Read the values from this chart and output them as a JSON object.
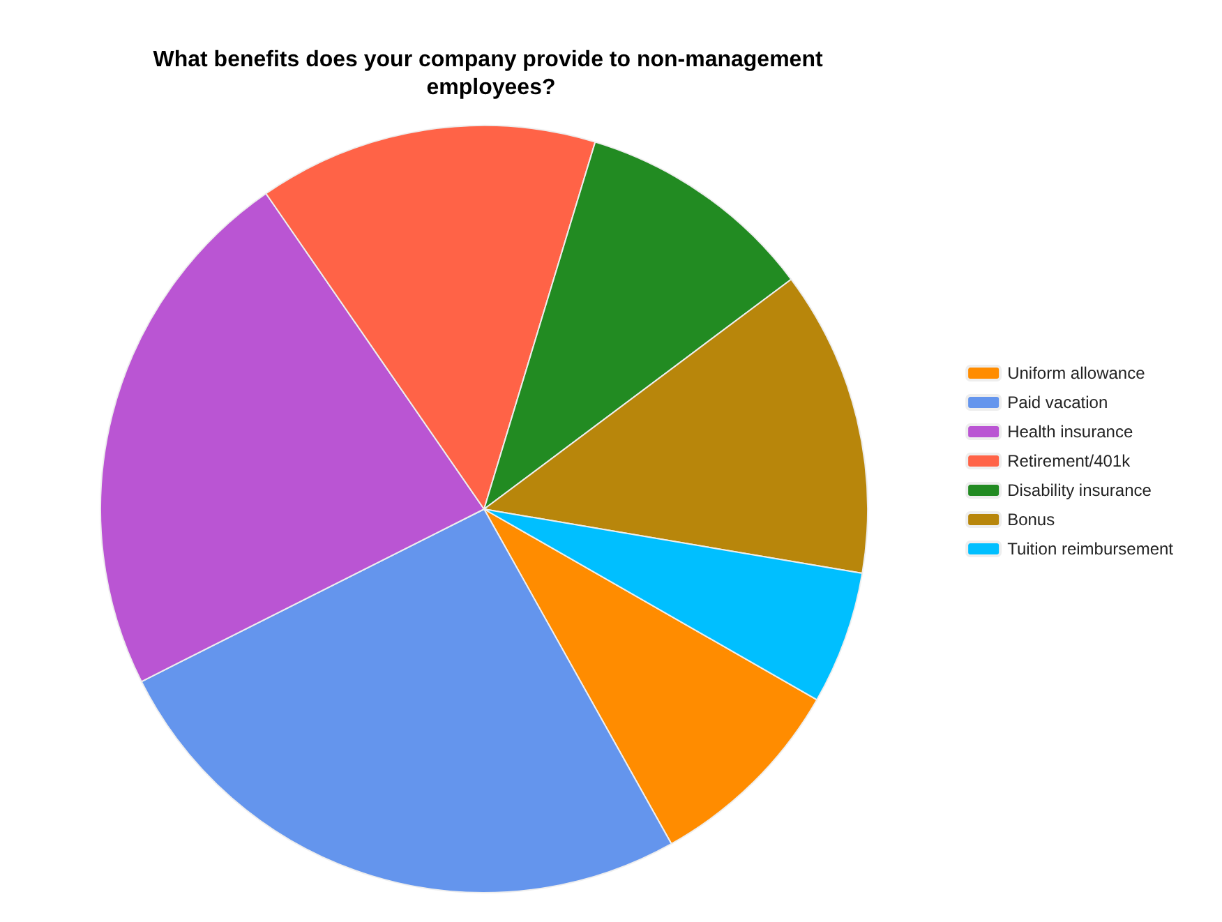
{
  "chart_data": {
    "type": "pie",
    "title": "What benefits does your company provide to non-management employees?",
    "categories": [
      "Uniform allowance",
      "Paid vacation",
      "Health insurance",
      "Retirement/401k",
      "Disability insurance",
      "Bonus",
      "Tuition reimbursement"
    ],
    "values": [
      8.6,
      25.7,
      22.8,
      14.3,
      10.1,
      12.9,
      5.6
    ],
    "colors": [
      "#ff8c00",
      "#6495ed",
      "#ba55d3",
      "#ff6347",
      "#228b22",
      "#b8860b",
      "#00bfff"
    ],
    "legend": "right"
  }
}
